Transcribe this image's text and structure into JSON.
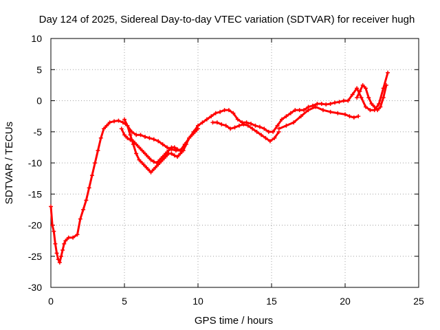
{
  "chart_data": {
    "type": "scatter",
    "title": "Day 124 of 2025, Sidereal Day-to-day VTEC variation (SDTVAR) for receiver hugh",
    "xlabel": "GPS time / hours",
    "ylabel": "SDTVAR / TECUs",
    "xlim": [
      0,
      25
    ],
    "ylim": [
      -30,
      10
    ],
    "x_ticks": [
      "0",
      "5",
      "10",
      "15",
      "20",
      "25"
    ],
    "y_ticks": [
      "10",
      "5",
      "0",
      "-5",
      "-10",
      "-15",
      "-20",
      "-25",
      "-30"
    ],
    "grid": true,
    "legend": "none",
    "series_color": "#ff0000",
    "marker": "plus",
    "series": [
      {
        "x": [
          0.0,
          0.1,
          0.2,
          0.3,
          0.4,
          0.5,
          0.6,
          0.7,
          0.8,
          0.9,
          1.0,
          1.2,
          1.5,
          1.8,
          2.0,
          2.2,
          2.4,
          2.6,
          2.8,
          3.0,
          3.2,
          3.4,
          3.6,
          3.8,
          4.0,
          4.3,
          4.6,
          4.9,
          5.2,
          5.5,
          5.8,
          6.1,
          6.4,
          6.7,
          7.0,
          7.3,
          7.6,
          7.9,
          8.2,
          8.5,
          8.8,
          9.1,
          9.4,
          9.7,
          10.0,
          10.3,
          10.6,
          10.9,
          11.2,
          11.5,
          11.8,
          12.1,
          12.4,
          12.7,
          13.0,
          13.3,
          13.6,
          13.9,
          14.2,
          14.5,
          14.8,
          15.1,
          15.4,
          15.7,
          16.0,
          16.3,
          16.6,
          16.9,
          17.2,
          17.5,
          17.8,
          18.1,
          18.4,
          18.7,
          19.0,
          19.3,
          19.6,
          19.9,
          20.2,
          20.5,
          20.8,
          21.1,
          21.4,
          21.7,
          22.0,
          22.3,
          22.6,
          22.9
        ],
        "y": [
          -17.0,
          -20.0,
          -21.0,
          -23.0,
          -24.5,
          -25.5,
          -26.0,
          -25.0,
          -24.0,
          -23.0,
          -22.5,
          -22.0,
          -22.0,
          -21.5,
          -19.0,
          -17.5,
          -16.0,
          -14.0,
          -12.0,
          -10.0,
          -8.0,
          -6.0,
          -4.5,
          -4.0,
          -3.5,
          -3.3,
          -3.2,
          -3.5,
          -4.0,
          -5.0,
          -5.5,
          -5.5,
          -5.8,
          -6.0,
          -6.2,
          -6.5,
          -7.0,
          -7.5,
          -7.8,
          -8.0,
          -8.0,
          -7.0,
          -6.0,
          -5.0,
          -4.0,
          -3.5,
          -3.0,
          -2.5,
          -2.0,
          -1.8,
          -1.5,
          -1.5,
          -2.0,
          -3.0,
          -3.5,
          -3.5,
          -3.7,
          -4.0,
          -4.2,
          -4.5,
          -5.0,
          -5.0,
          -4.0,
          -3.0,
          -2.5,
          -2.0,
          -1.5,
          -1.5,
          -1.5,
          -1.0,
          -0.8,
          -0.5,
          -0.5,
          -0.6,
          -0.5,
          -0.3,
          -0.2,
          0.0,
          0.0,
          1.0,
          2.0,
          0.5,
          -1.0,
          -1.5,
          -1.5,
          -0.5,
          2.0,
          4.5
        ]
      },
      {
        "x": [
          5.0,
          5.2,
          5.4,
          5.6,
          5.8,
          6.0,
          6.2,
          6.4,
          6.6,
          6.8,
          7.0,
          7.2,
          7.4,
          7.6,
          7.8,
          8.0,
          8.2,
          8.4,
          8.6,
          8.8,
          9.0,
          9.2,
          9.4,
          9.6,
          9.8,
          10.0
        ],
        "y": [
          -3.0,
          -4.0,
          -5.5,
          -7.0,
          -8.5,
          -9.5,
          -10.0,
          -10.5,
          -11.0,
          -11.5,
          -11.0,
          -10.5,
          -10.0,
          -9.5,
          -9.0,
          -8.5,
          -8.5,
          -8.8,
          -9.0,
          -8.5,
          -8.0,
          -7.0,
          -6.0,
          -5.5,
          -5.0,
          -4.5
        ]
      },
      {
        "x": [
          4.8,
          5.0,
          5.2,
          5.4,
          5.6,
          5.8,
          6.0,
          6.2,
          6.4,
          6.6,
          6.8,
          7.0,
          7.2,
          7.4,
          7.6,
          7.8,
          8.0,
          8.2,
          8.4,
          8.6,
          8.8,
          9.0
        ],
        "y": [
          -4.5,
          -5.5,
          -6.0,
          -6.3,
          -6.5,
          -7.0,
          -7.5,
          -8.0,
          -8.5,
          -9.0,
          -9.5,
          -9.8,
          -10.0,
          -9.5,
          -9.0,
          -8.5,
          -8.0,
          -7.5,
          -7.5,
          -7.8,
          -8.0,
          -8.0
        ]
      },
      {
        "x": [
          11.0,
          11.3,
          11.6,
          11.9,
          12.2,
          12.5,
          12.8,
          13.1,
          13.4,
          13.7,
          14.0,
          14.3,
          14.6,
          14.9,
          15.2,
          15.5
        ],
        "y": [
          -3.5,
          -3.5,
          -3.8,
          -4.0,
          -4.5,
          -4.3,
          -4.0,
          -3.8,
          -4.0,
          -4.5,
          -5.0,
          -5.5,
          -6.0,
          -6.5,
          -6.0,
          -5.0
        ]
      },
      {
        "x": [
          15.5,
          16.0,
          16.5,
          17.0,
          17.5,
          18.0,
          18.5,
          19.0,
          19.5,
          20.0,
          20.3,
          20.6,
          20.9
        ],
        "y": [
          -4.5,
          -4.0,
          -3.5,
          -2.5,
          -1.5,
          -1.0,
          -1.5,
          -1.8,
          -2.0,
          -2.2,
          -2.5,
          -2.7,
          -2.5
        ]
      },
      {
        "x": [
          20.8,
          21.0,
          21.2,
          21.4,
          21.6,
          21.8,
          22.0,
          22.2,
          22.4,
          22.6,
          22.8
        ],
        "y": [
          0.5,
          1.5,
          2.5,
          2.0,
          0.5,
          -0.5,
          -1.0,
          -1.5,
          -1.0,
          0.5,
          2.5
        ]
      }
    ]
  }
}
